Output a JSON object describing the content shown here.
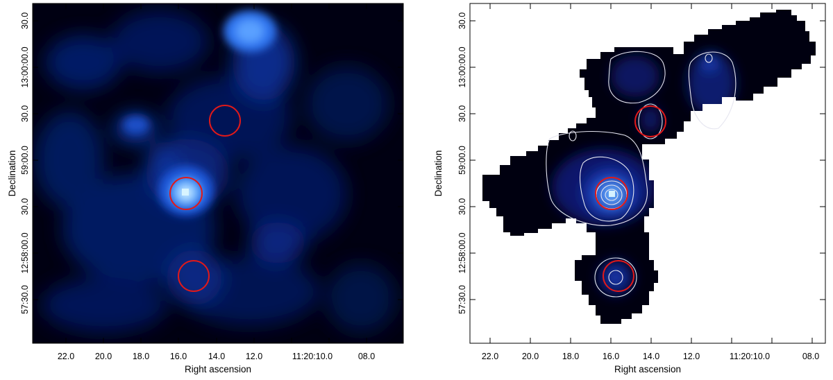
{
  "panels": [
    {
      "id": "left",
      "xlabel": "Right ascension",
      "ylabel": "Declination",
      "x_ticks": [
        "22.0",
        "20.0",
        "18.0",
        "16.0",
        "14.0",
        "12.0",
        "11:20:10.0",
        "08.0"
      ],
      "y_ticks": [
        "30.0",
        "13:00:00.0",
        "30.0",
        "59:00.0",
        "30.0",
        "12:58:00.0",
        "57:30.0"
      ],
      "image_type": "smoothed X-ray intensity map (blue colormap)",
      "regions": [
        {
          "shape": "circle",
          "color": "#e11919",
          "label": "region-north"
        },
        {
          "shape": "circle",
          "color": "#e11919",
          "label": "region-center"
        },
        {
          "shape": "circle",
          "color": "#e11919",
          "label": "region-south"
        }
      ]
    },
    {
      "id": "right",
      "xlabel": "Right ascension",
      "ylabel": "Declination",
      "x_ticks": [
        "22.0",
        "20.0",
        "18.0",
        "16.0",
        "14.0",
        "12.0",
        "11:20:10.0",
        "08.0"
      ],
      "y_ticks": [
        "30.0",
        "13:00:00.0",
        "30.0",
        "59:00.0",
        "30.0",
        "12:58:00.0",
        "57:30.0"
      ],
      "image_type": "mosaic intensity map with white contours",
      "regions": [
        {
          "shape": "circle",
          "color": "#e11919",
          "label": "region-north"
        },
        {
          "shape": "circle",
          "color": "#e11919",
          "label": "region-center"
        },
        {
          "shape": "circle",
          "color": "#e11919",
          "label": "region-south"
        }
      ]
    }
  ],
  "colors": {
    "background_map": "#000010",
    "glow": "#2a6aff",
    "contour": "#e6e6f0",
    "region": "#e11919"
  }
}
